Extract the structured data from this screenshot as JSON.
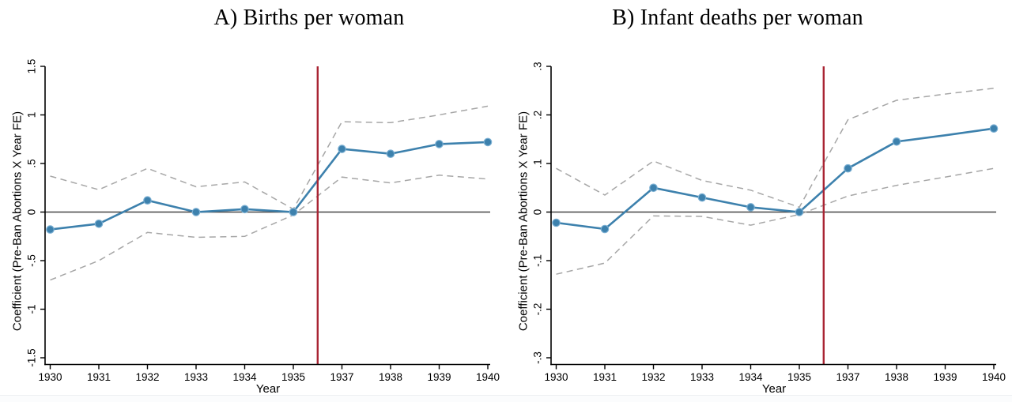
{
  "chart_data": [
    {
      "type": "line",
      "panel_label": "A",
      "title": "A) Births per woman",
      "xlabel": "Year",
      "ylabel": "Coefficient (Pre-Ban Abortions X Year FE)",
      "ylim": [
        -1.5,
        1.5
      ],
      "yticks": [
        {
          "value": 1.5,
          "label": "1.5"
        },
        {
          "value": 1.0,
          "label": "1"
        },
        {
          "value": 0.5,
          "label": ".5"
        },
        {
          "value": 0.0,
          "label": "0"
        },
        {
          "value": -0.5,
          "label": "-.5"
        },
        {
          "value": -1.0,
          "label": "-1"
        },
        {
          "value": -1.5,
          "label": "-1.5"
        }
      ],
      "categories": [
        1930,
        1931,
        1932,
        1933,
        1934,
        1935,
        1937,
        1938,
        1939,
        1940
      ],
      "series": [
        {
          "name": "coefficient",
          "style": "solid-markers",
          "color": "#3d81ad",
          "values": [
            -0.18,
            -0.12,
            0.12,
            0.0,
            0.03,
            0.0,
            0.65,
            0.6,
            0.7,
            0.72
          ],
          "markers": [
            true,
            true,
            true,
            true,
            true,
            true,
            true,
            true,
            true,
            true
          ]
        },
        {
          "name": "ci-upper",
          "style": "dashed",
          "color": "#a6a6a6",
          "values": [
            0.37,
            0.23,
            0.45,
            0.26,
            0.31,
            0.03,
            0.93,
            0.92,
            1.0,
            1.09
          ]
        },
        {
          "name": "ci-lower",
          "style": "dashed",
          "color": "#a6a6a6",
          "values": [
            -0.7,
            -0.5,
            -0.21,
            -0.26,
            -0.25,
            -0.03,
            0.36,
            0.3,
            0.38,
            0.34
          ]
        }
      ],
      "reference_vline": {
        "x": 1936,
        "color": "#a92433"
      },
      "zero_hline": {
        "y": 0,
        "color": "#444444"
      },
      "grid": false,
      "legend": "none"
    },
    {
      "type": "line",
      "panel_label": "B",
      "title": "B) Infant deaths per woman",
      "xlabel": "Year",
      "ylabel": "Coefficient (Pre-Ban Abortions X Year FE)",
      "ylim": [
        -0.3,
        0.3
      ],
      "yticks": [
        {
          "value": 0.3,
          "label": ".3"
        },
        {
          "value": 0.2,
          "label": ".2"
        },
        {
          "value": 0.1,
          "label": ".1"
        },
        {
          "value": 0.0,
          "label": "0"
        },
        {
          "value": -0.1,
          "label": "-.1"
        },
        {
          "value": -0.2,
          "label": "-.2"
        },
        {
          "value": -0.3,
          "label": "-.3"
        }
      ],
      "categories": [
        1930,
        1931,
        1932,
        1933,
        1934,
        1935,
        1937,
        1938,
        1939,
        1940
      ],
      "series": [
        {
          "name": "coefficient",
          "style": "solid-markers",
          "color": "#3d81ad",
          "values": [
            -0.022,
            -0.035,
            0.05,
            0.03,
            0.01,
            0.0,
            0.09,
            0.145,
            0.158,
            0.172
          ],
          "markers": [
            true,
            true,
            true,
            true,
            true,
            true,
            true,
            true,
            false,
            true
          ]
        },
        {
          "name": "ci-upper",
          "style": "dashed",
          "color": "#a6a6a6",
          "values": [
            0.09,
            0.035,
            0.105,
            0.065,
            0.045,
            0.01,
            0.19,
            0.23,
            0.243,
            0.255
          ]
        },
        {
          "name": "ci-lower",
          "style": "dashed",
          "color": "#a6a6a6",
          "values": [
            -0.128,
            -0.105,
            -0.008,
            -0.009,
            -0.027,
            -0.005,
            0.033,
            0.055,
            0.072,
            0.09
          ]
        }
      ],
      "reference_vline": {
        "x": 1936,
        "color": "#a92433"
      },
      "zero_hline": {
        "y": 0,
        "color": "#444444"
      },
      "grid": false,
      "legend": "none"
    }
  ],
  "style": {
    "axis_color": "#000000",
    "tick_label_color": "#000000",
    "background": "#ffffff"
  }
}
